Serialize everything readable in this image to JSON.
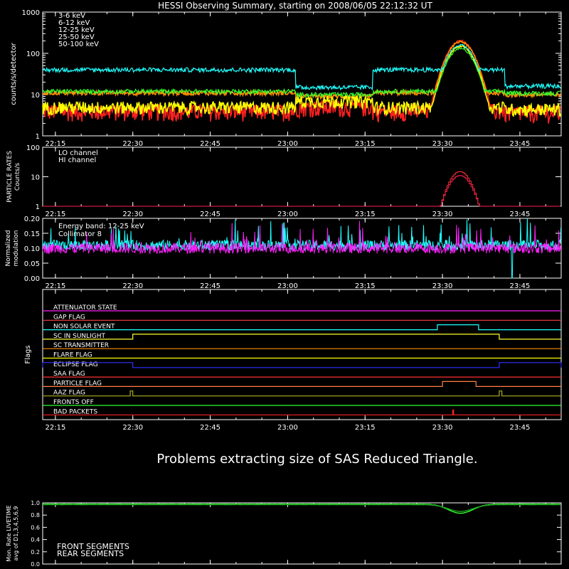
{
  "title": "HESSI Observing Summary, starting on 2008/06/05 22:12:32 UT",
  "message": "Problems extracting size of SAS Reduced Triangle.",
  "time_axis": {
    "start": "22:12:32",
    "end": "23:53:00",
    "ticks": [
      "22:15",
      "22:30",
      "22:45",
      "23:00",
      "23:15",
      "23:30",
      "23:45"
    ]
  },
  "colors": {
    "axes": "#ffffff",
    "background": "#000000"
  },
  "chart_data": [
    {
      "type": "line",
      "ylabel": "counts/s/detector",
      "yscale": "log",
      "ylim": [
        1,
        1000
      ],
      "yticks": [
        "1",
        "10",
        "100",
        "1000"
      ],
      "series": [
        {
          "name": "3-6 keV",
          "color": "#ff2020",
          "quiet": 4,
          "eclipse": 5,
          "peak": 200
        },
        {
          "name": "6-12 keV",
          "color": "#ff8c00",
          "quiet": 11,
          "eclipse": 9,
          "peak": 190
        },
        {
          "name": "12-25 keV",
          "color": "#ffff00",
          "quiet": 5,
          "eclipse": 7,
          "peak": 150
        },
        {
          "name": "25-50 keV",
          "color": "#30ff30",
          "quiet": 12,
          "eclipse": 10,
          "peak": 130
        },
        {
          "name": "50-100 keV",
          "color": "#20ffff",
          "quiet": 40,
          "eclipse": 15,
          "peak": 160
        }
      ]
    },
    {
      "type": "line",
      "ylabel": "PARTICLE RATES",
      "ylabel2": "Counts/s",
      "yscale": "log",
      "ylim": [
        1,
        100
      ],
      "yticks": [
        "1",
        "10",
        "100"
      ],
      "series": [
        {
          "name": "LO channel",
          "color": "#ff3030",
          "peak": 15
        },
        {
          "name": "HI channel",
          "color": "#ff2050",
          "peak": 11
        }
      ],
      "burst": {
        "start": "23:29:30",
        "end": "23:37:00"
      }
    },
    {
      "type": "line",
      "ylabel": "Normalized",
      "ylabel2": "modulation",
      "ylim": [
        0,
        0.2
      ],
      "yticks": [
        "0.00",
        "0.05",
        "0.10",
        "0.15",
        "0.20"
      ],
      "annotation": "Energy band: 12-25 keV",
      "series": [
        {
          "name": "Collimator 8",
          "color": "#20ffff",
          "mean": 0.11
        },
        {
          "name": "",
          "color": "#ff20ff",
          "mean": 0.1
        }
      ],
      "dropout": "23:43:30"
    },
    {
      "type": "line",
      "ylabel": "Flags",
      "flags": [
        {
          "name": "ATTENUATOR STATE",
          "color": "#ff20ff",
          "intervals": []
        },
        {
          "name": "GAP FLAG",
          "color": "#ff4040",
          "intervals": []
        },
        {
          "name": "NON SOLAR EVENT",
          "color": "#20ffff",
          "intervals": [
            [
              "23:29:00",
              "23:37:00"
            ]
          ]
        },
        {
          "name": "SC IN SUNLIGHT",
          "color": "#ffff30",
          "intervals": [
            [
              "22:30:00",
              "23:41:00"
            ]
          ]
        },
        {
          "name": "SC TRANSMITTER",
          "color": "#ff8c00",
          "intervals": []
        },
        {
          "name": "FLARE FLAG",
          "color": "#ffff00",
          "intervals": []
        },
        {
          "name": "ECLIPSE FLAG",
          "color": "#3030ff",
          "intervals": [
            [
              "22:12:32",
              "22:30:00"
            ],
            [
              "23:41:00",
              "23:53:00"
            ]
          ]
        },
        {
          "name": "SAA FLAG",
          "color": "#ff3030",
          "intervals": []
        },
        {
          "name": "PARTICLE FLAG",
          "color": "#ff8040",
          "intervals": [
            [
              "23:30:00",
              "23:36:30"
            ]
          ]
        },
        {
          "name": "AAZ FLAG",
          "color": "#b0b020",
          "intervals": [
            [
              "22:29:30",
              "22:30:00"
            ],
            [
              "23:41:00",
              "23:41:30"
            ]
          ]
        },
        {
          "name": "FRONTS OFF",
          "color": "#30ff30",
          "intervals": []
        },
        {
          "name": "BAD PACKETS",
          "color": "#ff2020",
          "intervals": [
            [
              "23:32:00",
              "23:32:10"
            ]
          ]
        }
      ]
    },
    {
      "type": "line",
      "ylabel": "Mon. Rate LIVETIME",
      "ylabel2": "avg of D1,3,4,5,6,9",
      "ylim": [
        0,
        1.0
      ],
      "yticks": [
        "0.0",
        "0.2",
        "0.4",
        "0.6",
        "0.8",
        "1.0"
      ],
      "series": [
        {
          "name": "FRONT SEGMENTS",
          "color": "#30ff30",
          "base": 0.98,
          "min": 0.83
        },
        {
          "name": "REAR SEGMENTS",
          "color": "#20a020",
          "base": 0.97,
          "min": 0.86
        }
      ],
      "dip_center": "23:33:30"
    }
  ]
}
